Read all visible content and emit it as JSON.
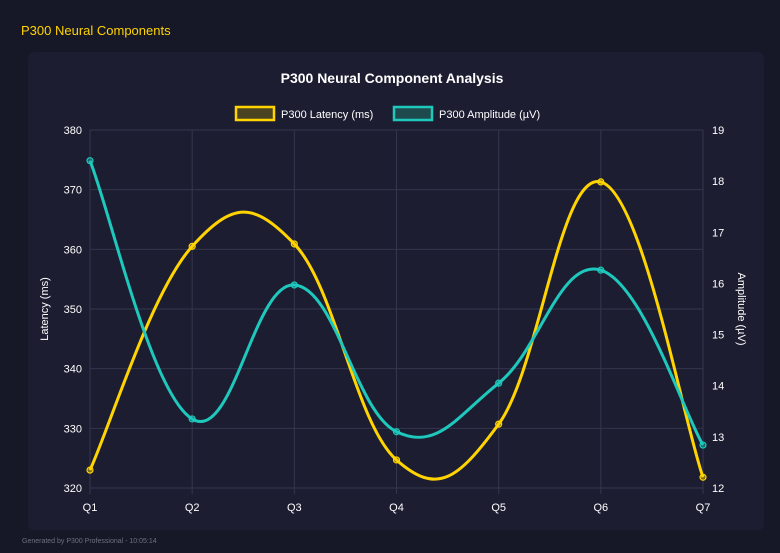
{
  "page_title": "P300 Neural Components",
  "footer": "Generated by P300 Professional - 10:05:14",
  "colors": {
    "latency": "#ffd400",
    "amplitude": "#1ec8bc",
    "background": "#171827"
  },
  "chart_data": {
    "type": "line",
    "title": "P300 Neural Component Analysis",
    "categories": [
      "Q1",
      "Q2",
      "Q3",
      "Q4",
      "Q5",
      "Q6",
      "Q7"
    ],
    "series": [
      {
        "name": "P300 Latency (ms)",
        "axis": "left",
        "values": [
          323.0,
          360.5,
          360.9,
          324.7,
          330.7,
          371.3,
          321.8
        ]
      },
      {
        "name": "P300 Amplitude (µV)",
        "axis": "right",
        "values": [
          18.4,
          13.35,
          15.97,
          13.1,
          14.05,
          16.26,
          12.84
        ]
      }
    ],
    "ylabel": "Latency (ms)",
    "y2label": "Amplitude (µV)",
    "ylim": [
      320,
      380
    ],
    "yticks": [
      "380",
      "370",
      "360",
      "350",
      "340",
      "330",
      "320"
    ],
    "y2lim": [
      12,
      19
    ],
    "y2ticks": [
      "19",
      "18",
      "17",
      "16",
      "15",
      "14",
      "13",
      "12"
    ],
    "grid": true,
    "legend": "top",
    "smooth": true
  }
}
